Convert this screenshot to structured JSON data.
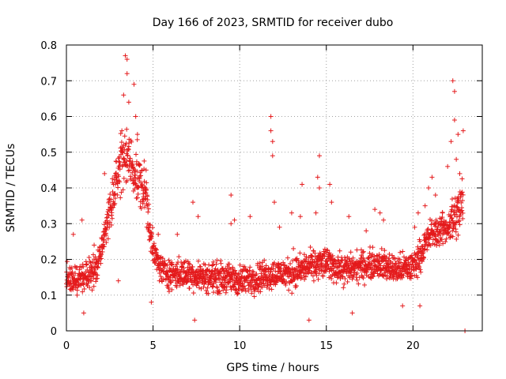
{
  "chart_data": {
    "type": "scatter",
    "title": "Day 166 of 2023, SRMTID for receiver dubo",
    "xlabel": "GPS time / hours",
    "ylabel": "SRMTID / TECUs",
    "xlim": [
      0,
      24
    ],
    "ylim": [
      0,
      0.8
    ],
    "x_ticks": [
      0,
      5,
      10,
      15,
      20
    ],
    "x_tick_labels": [
      "0",
      "5",
      "10",
      "15",
      "20"
    ],
    "y_ticks": [
      0,
      0.1,
      0.2,
      0.3,
      0.4,
      0.5,
      0.6,
      0.7,
      0.8
    ],
    "y_tick_labels": [
      "0",
      "0.1",
      "0.2",
      "0.3",
      "0.4",
      "0.5",
      "0.6",
      "0.7",
      "0.8"
    ],
    "grid": true,
    "marker": "+",
    "series": [
      {
        "name": "SRMTID",
        "color": "#e41a1c",
        "trend": [
          [
            0.0,
            0.15
          ],
          [
            0.5,
            0.14
          ],
          [
            1.0,
            0.15
          ],
          [
            1.5,
            0.16
          ],
          [
            1.9,
            0.2
          ],
          [
            2.2,
            0.28
          ],
          [
            2.6,
            0.36
          ],
          [
            3.0,
            0.44
          ],
          [
            3.4,
            0.5
          ],
          [
            3.8,
            0.46
          ],
          [
            4.2,
            0.42
          ],
          [
            4.6,
            0.38
          ],
          [
            5.0,
            0.22
          ],
          [
            5.5,
            0.17
          ],
          [
            6.0,
            0.16
          ],
          [
            7.0,
            0.16
          ],
          [
            8.0,
            0.15
          ],
          [
            9.0,
            0.15
          ],
          [
            10.0,
            0.14
          ],
          [
            11.0,
            0.15
          ],
          [
            12.0,
            0.16
          ],
          [
            13.0,
            0.16
          ],
          [
            14.0,
            0.18
          ],
          [
            15.0,
            0.19
          ],
          [
            16.0,
            0.17
          ],
          [
            17.0,
            0.18
          ],
          [
            18.0,
            0.19
          ],
          [
            19.0,
            0.17
          ],
          [
            20.0,
            0.18
          ],
          [
            20.5,
            0.22
          ],
          [
            21.0,
            0.27
          ],
          [
            21.5,
            0.28
          ],
          [
            22.0,
            0.29
          ],
          [
            22.5,
            0.32
          ],
          [
            22.9,
            0.36
          ]
        ],
        "spread": 0.06,
        "spikes": [
          [
            0.4,
            0.27
          ],
          [
            0.9,
            0.31
          ],
          [
            1.0,
            0.05
          ],
          [
            1.6,
            0.24
          ],
          [
            2.2,
            0.44
          ],
          [
            3.0,
            0.14
          ],
          [
            3.2,
            0.56
          ],
          [
            3.3,
            0.66
          ],
          [
            3.4,
            0.77
          ],
          [
            3.5,
            0.76
          ],
          [
            3.5,
            0.72
          ],
          [
            3.6,
            0.64
          ],
          [
            3.9,
            0.69
          ],
          [
            4.0,
            0.6
          ],
          [
            4.1,
            0.55
          ],
          [
            4.6,
            0.45
          ],
          [
            4.9,
            0.08
          ],
          [
            5.3,
            0.27
          ],
          [
            6.4,
            0.27
          ],
          [
            7.3,
            0.36
          ],
          [
            7.4,
            0.03
          ],
          [
            7.6,
            0.32
          ],
          [
            9.5,
            0.38
          ],
          [
            9.5,
            0.3
          ],
          [
            9.7,
            0.31
          ],
          [
            10.6,
            0.32
          ],
          [
            11.8,
            0.6
          ],
          [
            11.8,
            0.56
          ],
          [
            11.9,
            0.53
          ],
          [
            11.9,
            0.49
          ],
          [
            12.0,
            0.36
          ],
          [
            12.3,
            0.29
          ],
          [
            13.0,
            0.33
          ],
          [
            13.1,
            0.23
          ],
          [
            13.5,
            0.32
          ],
          [
            13.6,
            0.41
          ],
          [
            14.0,
            0.03
          ],
          [
            14.4,
            0.33
          ],
          [
            14.5,
            0.43
          ],
          [
            14.6,
            0.49
          ],
          [
            14.6,
            0.4
          ],
          [
            15.2,
            0.41
          ],
          [
            15.3,
            0.36
          ],
          [
            16.3,
            0.32
          ],
          [
            16.5,
            0.05
          ],
          [
            17.3,
            0.28
          ],
          [
            17.8,
            0.34
          ],
          [
            18.1,
            0.33
          ],
          [
            18.3,
            0.31
          ],
          [
            19.4,
            0.07
          ],
          [
            20.1,
            0.29
          ],
          [
            20.3,
            0.33
          ],
          [
            20.4,
            0.07
          ],
          [
            20.7,
            0.35
          ],
          [
            20.9,
            0.4
          ],
          [
            21.1,
            0.43
          ],
          [
            21.3,
            0.38
          ],
          [
            21.7,
            0.33
          ],
          [
            22.0,
            0.46
          ],
          [
            22.2,
            0.53
          ],
          [
            22.3,
            0.7
          ],
          [
            22.4,
            0.67
          ],
          [
            22.4,
            0.59
          ],
          [
            22.5,
            0.48
          ],
          [
            22.6,
            0.55
          ],
          [
            22.7,
            0.44
          ],
          [
            22.9,
            0.56
          ],
          [
            23.0,
            0.0
          ]
        ]
      }
    ]
  }
}
